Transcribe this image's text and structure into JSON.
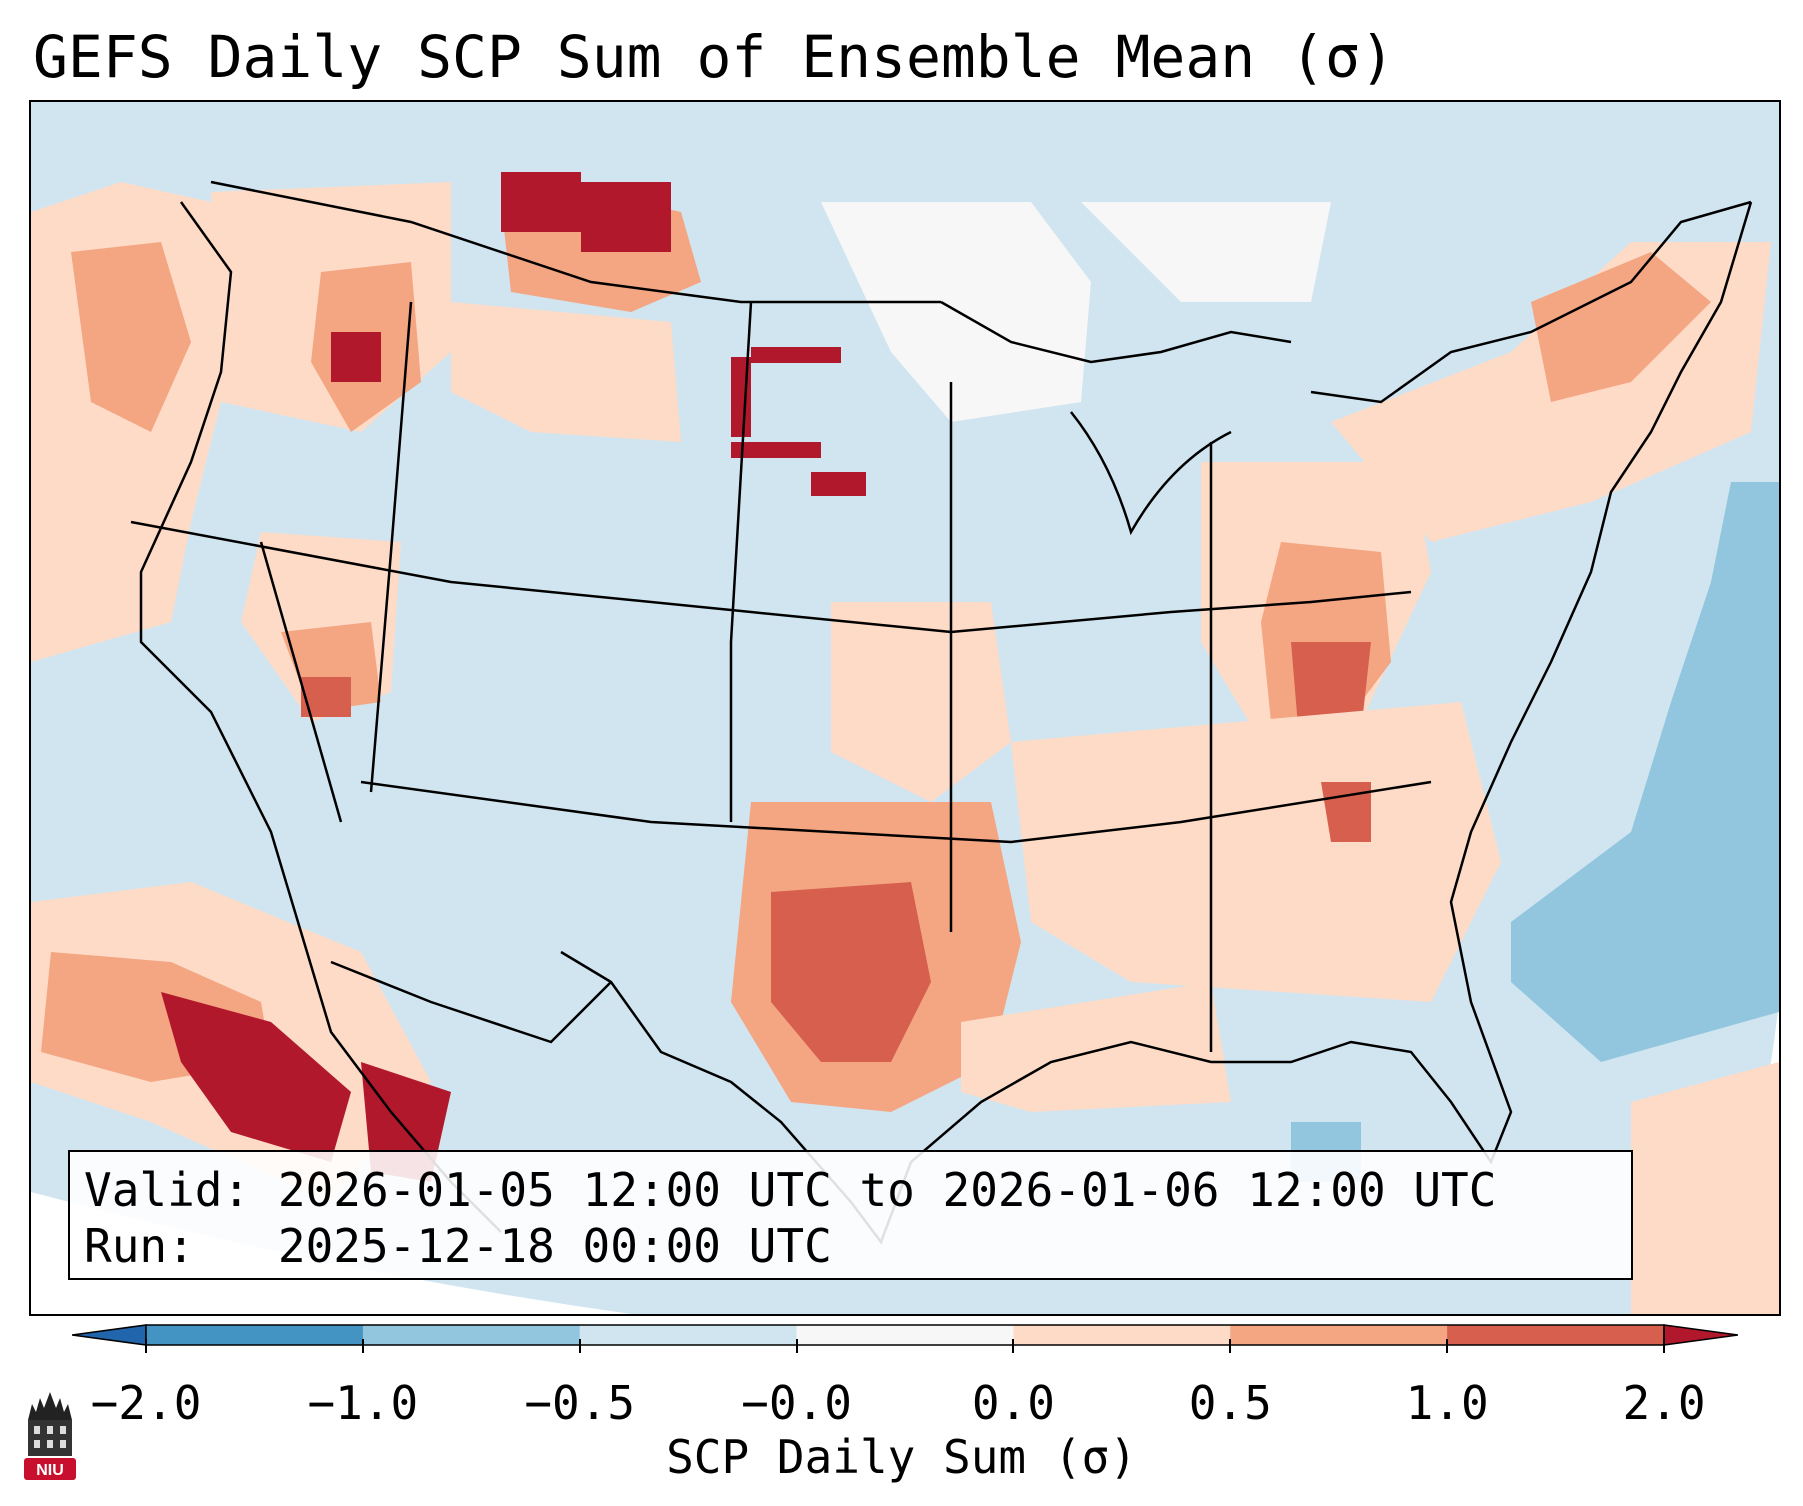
{
  "title": "GEFS Daily SCP Sum of Ensemble Mean (σ)",
  "info": {
    "valid_label": "Valid:",
    "valid_value": "2026-01-05 12:00 UTC to 2026-01-06 12:00 UTC",
    "run_label": "Run:",
    "run_value": "2025-12-18 00:00 UTC"
  },
  "colorbar": {
    "label": "SCP Daily Sum (σ)",
    "ticks": [
      "−2.0",
      "−1.0",
      "−0.5",
      "−0.0",
      "0.0",
      "0.5",
      "1.0",
      "2.0"
    ],
    "colors": [
      "#4393c3",
      "#92c5de",
      "#d1e5f0",
      "#f7f7f7",
      "#fddbc7",
      "#f4a582",
      "#d6604d"
    ],
    "extend_low_color": "#2166ac",
    "extend_high_color": "#b2182b"
  },
  "logo": {
    "text": "NIU",
    "icon": "niu-tower-icon"
  },
  "map": {
    "region": "Contiguous United States",
    "palette": {
      "lightblue": "#d1e5f0",
      "midblue": "#92c5de",
      "white": "#f7f7f7",
      "lightred": "#fddbc7",
      "midred": "#f4a582",
      "red": "#d6604d",
      "darkred": "#b2182b"
    },
    "anomaly_areas": [
      {
        "name": "Pacific Northwest",
        "level": "midred"
      },
      {
        "name": "Northern Rockies",
        "level": "darkred"
      },
      {
        "name": "South Dakota / Nebraska",
        "level": "darkred"
      },
      {
        "name": "Northern Plains",
        "level": "white"
      },
      {
        "name": "Texas",
        "level": "red"
      },
      {
        "name": "Ohio Valley",
        "level": "red"
      },
      {
        "name": "Southeast",
        "level": "lightred"
      },
      {
        "name": "Gulf of Mexico",
        "level": "lightred"
      },
      {
        "name": "Baja California / Mexico",
        "level": "darkred"
      },
      {
        "name": "Western Atlantic",
        "level": "midblue"
      }
    ]
  }
}
